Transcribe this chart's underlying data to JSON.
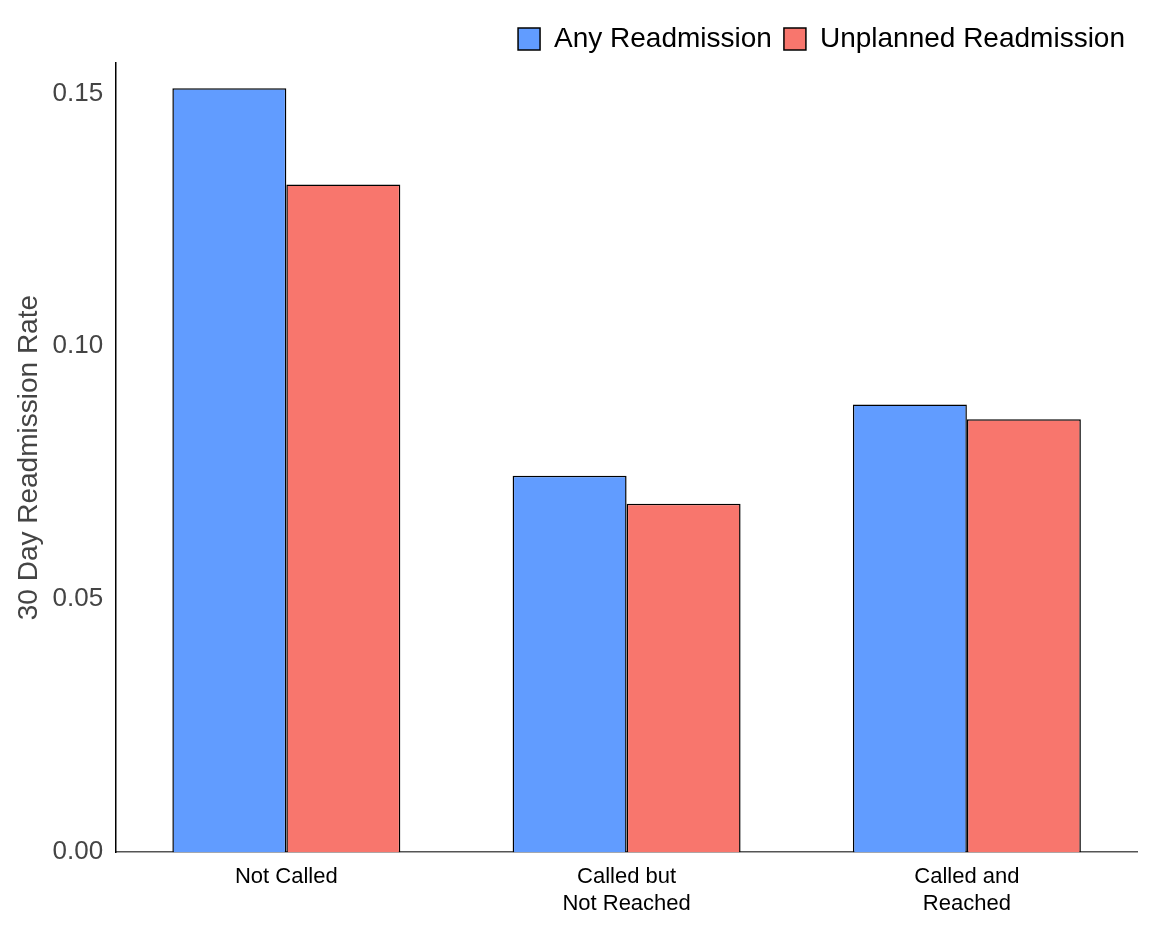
{
  "chart_data": {
    "type": "bar",
    "ylabel": "30 Day Readmission Rate",
    "categories": [
      "Not Called",
      "Called but\nNot Reached",
      "Called and\nReached"
    ],
    "series": [
      {
        "name": "Any Readmission",
        "color": "#619cff",
        "values": [
          0.151,
          0.0744,
          0.0885
        ]
      },
      {
        "name": "Unplanned Readmission",
        "color": "#f8766d",
        "values": [
          0.132,
          0.0689,
          0.0856
        ]
      }
    ],
    "ylim": [
      0,
      0.156
    ],
    "yticks": [
      {
        "value": 0,
        "label": "0.00"
      },
      {
        "value": 0.05,
        "label": "0.05"
      },
      {
        "value": 0.1,
        "label": "0.10"
      },
      {
        "value": 0.15,
        "label": "0.15"
      }
    ],
    "grid": false,
    "legend": "top right"
  }
}
